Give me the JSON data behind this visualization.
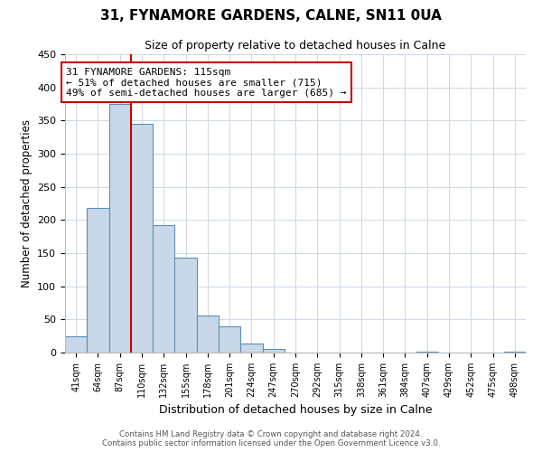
{
  "title": "31, FYNAMORE GARDENS, CALNE, SN11 0UA",
  "subtitle": "Size of property relative to detached houses in Calne",
  "xlabel": "Distribution of detached houses by size in Calne",
  "ylabel": "Number of detached properties",
  "bin_labels": [
    "41sqm",
    "64sqm",
    "87sqm",
    "110sqm",
    "132sqm",
    "155sqm",
    "178sqm",
    "201sqm",
    "224sqm",
    "247sqm",
    "270sqm",
    "292sqm",
    "315sqm",
    "338sqm",
    "361sqm",
    "384sqm",
    "407sqm",
    "429sqm",
    "452sqm",
    "475sqm",
    "498sqm"
  ],
  "bar_heights": [
    24,
    218,
    375,
    345,
    192,
    143,
    56,
    40,
    14,
    6,
    0,
    0,
    0,
    0,
    0,
    0,
    1,
    0,
    0,
    0,
    1
  ],
  "bar_color": "#c8d8e8",
  "bar_edge_color": "#5a90b8",
  "vline_x": 2.5,
  "vline_color": "#cc0000",
  "annotation_text": "31 FYNAMORE GARDENS: 115sqm\n← 51% of detached houses are smaller (715)\n49% of semi-detached houses are larger (685) →",
  "annotation_box_color": "#ffffff",
  "annotation_box_edge": "#cc0000",
  "ylim": [
    0,
    450
  ],
  "yticks": [
    0,
    50,
    100,
    150,
    200,
    250,
    300,
    350,
    400,
    450
  ],
  "footer1": "Contains HM Land Registry data © Crown copyright and database right 2024.",
  "footer2": "Contains public sector information licensed under the Open Government Licence v3.0.",
  "bg_color": "#ffffff",
  "grid_color": "#ccd8e4"
}
